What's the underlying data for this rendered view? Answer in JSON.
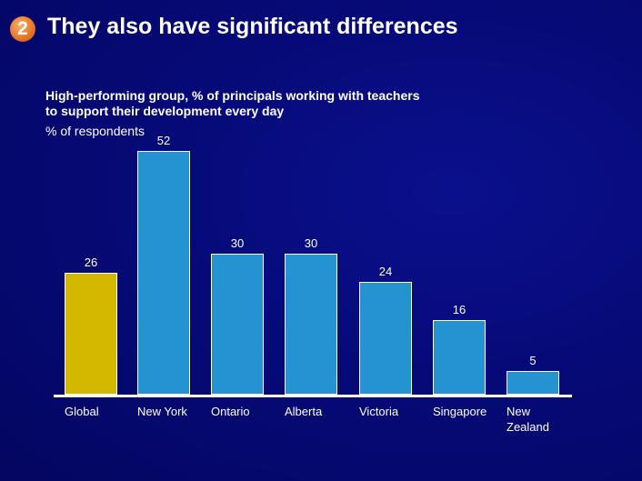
{
  "header": {
    "badge_number": "2",
    "title": "They also have significant differences"
  },
  "chart_data": {
    "type": "bar",
    "title": "High-performing group, % of principals working with teachers to support their development every day",
    "subtitle_lines": [
      "High-performing group, % of principals working with teachers",
      "to support their development every day"
    ],
    "ylabel": "% of respondents",
    "xlabel": "",
    "categories": [
      "Global",
      "New York",
      "Ontario",
      "Alberta",
      "Victoria",
      "Singapore",
      "New Zealand"
    ],
    "values": [
      26,
      52,
      30,
      30,
      24,
      16,
      5
    ],
    "value_labels": [
      "26",
      "52",
      "30",
      "30",
      "24",
      "16",
      "5"
    ],
    "bar_colors": [
      "#d4b800",
      "#2593d0",
      "#2593d0",
      "#2593d0",
      "#2593d0",
      "#2593d0",
      "#2593d0"
    ],
    "grid": false,
    "legend": null,
    "ylim": [
      0,
      55
    ]
  },
  "colors": {
    "background": "#060a78",
    "highlight_bar": "#d4b800",
    "default_bar": "#2593d0",
    "badge": "#e8792a"
  }
}
